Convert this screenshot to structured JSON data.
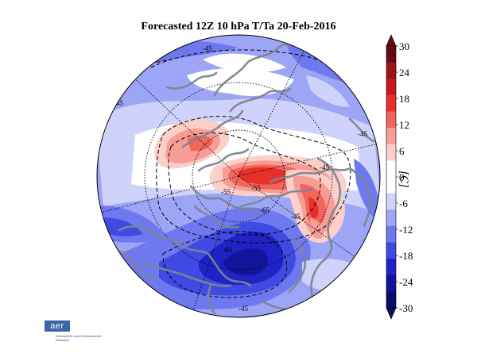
{
  "title": "Forecasted 12Z 10 hPa T/Ta 20-Feb-2016",
  "colorbar": {
    "label": "[C]",
    "ticks": [
      "30",
      "24",
      "18",
      "12",
      "6",
      "0",
      "-6",
      "-12",
      "-18",
      "-24",
      "-30"
    ],
    "colors": [
      "#670a16",
      "#9c1519",
      "#c9181d",
      "#e8302a",
      "#f1655c",
      "#f79d95",
      "#fccfc9",
      "#ffffff",
      "#ffffff",
      "#cfd3fb",
      "#9ca5f6",
      "#6f79ef",
      "#3f4ae2",
      "#1f23c6",
      "#12159c",
      "#0b0c6b"
    ]
  },
  "contour_labels": [
    "-45",
    "-45",
    "-45",
    "-55",
    "-55",
    "-65",
    "-65",
    "-45",
    "-45",
    "-45"
  ],
  "logo": {
    "name": "aer",
    "tagline": "Atmospheric and Environmental Research"
  }
}
